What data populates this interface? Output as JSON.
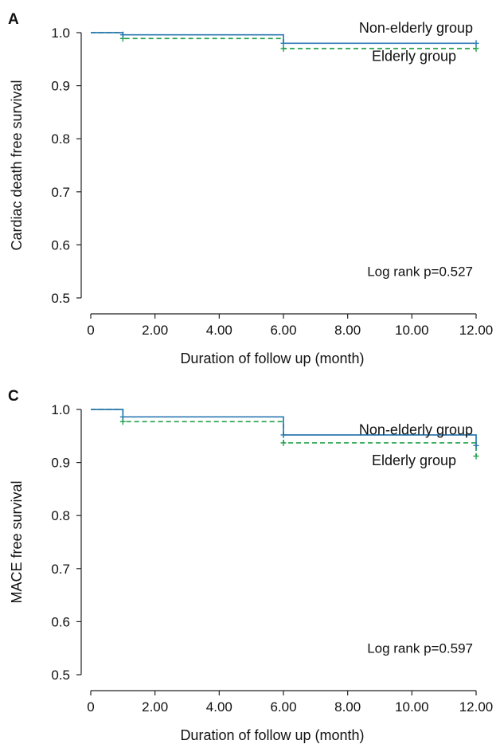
{
  "chart_data": [
    {
      "panel": "A",
      "type": "line",
      "xlabel": "Duration of follow up (month)",
      "ylabel": "Cardiac death free survival",
      "x_ticks": [
        "0",
        "2.00",
        "4.00",
        "6.00",
        "8.00",
        "10.00",
        "12.00"
      ],
      "y_ticks": [
        "0.5",
        "0.6",
        "0.7",
        "0.8",
        "0.9",
        "1.0"
      ],
      "xlim": [
        0,
        12
      ],
      "ylim": [
        0.5,
        1.0
      ],
      "annotation": "Log rank p=0.527",
      "series": [
        {
          "name": "Non-elderly group",
          "color": "#2d7ab3",
          "style": "solid",
          "steps": [
            [
              0,
              1.0
            ],
            [
              1,
              0.996
            ],
            [
              6,
              0.98
            ],
            [
              12,
              0.98
            ]
          ],
          "censor": [
            [
              1,
              0.996
            ],
            [
              6,
              0.98
            ],
            [
              12,
              0.98
            ]
          ],
          "label_y": 1.009
        },
        {
          "name": "Elderly group",
          "color": "#22a24a",
          "style": "dashed",
          "steps": [
            [
              0,
              1.0
            ],
            [
              1,
              0.989
            ],
            [
              6,
              0.97
            ],
            [
              12,
              0.97
            ]
          ],
          "censor": [
            [
              1,
              0.989
            ],
            [
              6,
              0.97
            ],
            [
              12,
              0.97
            ]
          ],
          "label_y": 0.956
        }
      ]
    },
    {
      "panel": "C",
      "type": "line",
      "xlabel": "Duration of follow up (month)",
      "ylabel": "MACE free survival",
      "x_ticks": [
        "0",
        "2.00",
        "4.00",
        "6.00",
        "8.00",
        "10.00",
        "12.00"
      ],
      "y_ticks": [
        "0.5",
        "0.6",
        "0.7",
        "0.8",
        "0.9",
        "1.0"
      ],
      "xlim": [
        0,
        12
      ],
      "ylim": [
        0.5,
        1.0
      ],
      "annotation": "Log rank p=0.597",
      "series": [
        {
          "name": "Non-elderly group",
          "color": "#2d7ab3",
          "style": "solid",
          "steps": [
            [
              0,
              1.0
            ],
            [
              1,
              0.986
            ],
            [
              6,
              0.952
            ],
            [
              12,
              0.932
            ]
          ],
          "censor": [
            [
              1,
              0.986
            ],
            [
              6,
              0.952
            ],
            [
              12,
              0.932
            ]
          ],
          "label_y": 0.962
        },
        {
          "name": "Elderly group",
          "color": "#22a24a",
          "style": "dashed",
          "steps": [
            [
              0,
              1.0
            ],
            [
              1,
              0.977
            ],
            [
              6,
              0.937
            ],
            [
              12,
              0.912
            ]
          ],
          "censor": [
            [
              1,
              0.977
            ],
            [
              6,
              0.937
            ],
            [
              12,
              0.912
            ]
          ],
          "label_y": 0.904
        }
      ]
    }
  ]
}
